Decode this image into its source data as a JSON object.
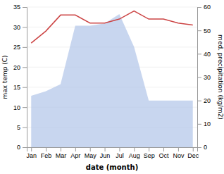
{
  "chart_data": {
    "type": "line",
    "xlabel": "date (month)",
    "ylabel": "max temp (C)",
    "y2label": "med. precipitation (kg/m2)",
    "categories": [
      "Jan",
      "Feb",
      "Mar",
      "Apr",
      "May",
      "Jun",
      "Jul",
      "Aug",
      "Sep",
      "Oct",
      "Nov",
      "Dec"
    ],
    "series": [
      {
        "type": "area",
        "axis": "y2",
        "color": "#b0c4e8",
        "values": [
          22,
          24,
          27,
          52,
          52,
          53,
          57,
          43,
          20,
          20,
          20,
          20
        ]
      },
      {
        "type": "line",
        "color": "#cc4444",
        "values": [
          26,
          29,
          33,
          33,
          31,
          31,
          32,
          34,
          32,
          32,
          31,
          30.5
        ]
      }
    ],
    "ylim": [
      0,
      35
    ],
    "yticks": [
      0,
      5,
      10,
      15,
      20,
      25,
      30,
      35
    ],
    "y2lim": [
      0,
      60
    ],
    "y2ticks": [
      0,
      10,
      20,
      30,
      40,
      50,
      60
    ],
    "grid": true
  }
}
